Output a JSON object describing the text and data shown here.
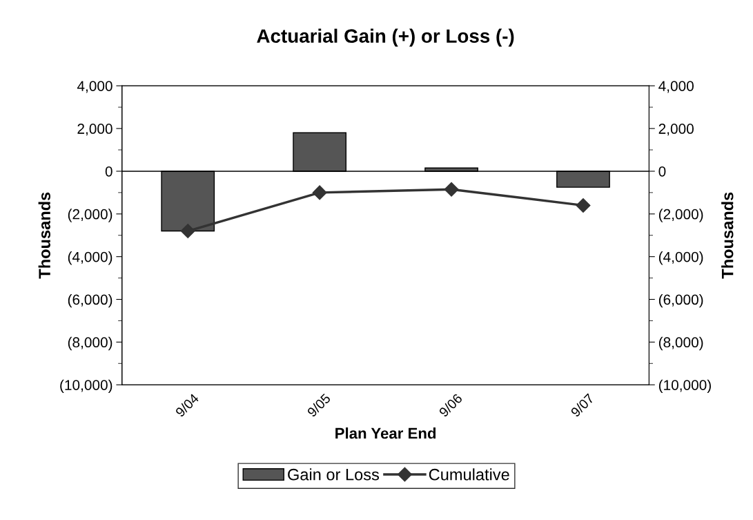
{
  "chart_data": {
    "type": "bar",
    "title": "Actuarial Gain (+) or Loss (-)",
    "xlabel": "Plan Year End",
    "ylabel": "Thousands",
    "y2label": "Thousands",
    "categories": [
      "9/04",
      "9/05",
      "9/06",
      "9/07"
    ],
    "series": [
      {
        "name": "Gain or Loss",
        "color": "#555555",
        "values": [
          -2800,
          1800,
          150,
          -750
        ]
      },
      {
        "name": "Cumulative",
        "type": "line",
        "color": "#333333",
        "marker": "diamond",
        "values": [
          -2800,
          -1000,
          -850,
          -1600
        ]
      }
    ],
    "ylim": [
      -10000,
      4000
    ],
    "yticks": [
      {
        "value": -10000,
        "label": "(10,000)"
      },
      {
        "value": -8000,
        "label": "(8,000)"
      },
      {
        "value": -6000,
        "label": "(6,000)"
      },
      {
        "value": -4000,
        "label": "(4,000)"
      },
      {
        "value": -2000,
        "label": "(2,000)"
      },
      0,
      {
        "value": 2000,
        "label": "2,000"
      },
      {
        "value": 4000,
        "label": "4,000"
      }
    ],
    "y2lim": [
      -10000,
      4000
    ],
    "y2ticks": [
      {
        "value": -10000,
        "label": "(10,000)"
      },
      {
        "value": -8000,
        "label": "(8,000)"
      },
      {
        "value": -6000,
        "label": "(6,000)"
      },
      {
        "value": -4000,
        "label": "(4,000)"
      },
      {
        "value": -2000,
        "label": "(2,000)"
      },
      0,
      {
        "value": 2000,
        "label": "2,000"
      },
      {
        "value": 4000,
        "label": "4,000"
      }
    ],
    "ref_lines": [
      {
        "axis": "y",
        "value": 0,
        "color": "#000000"
      }
    ],
    "grid": false,
    "legend": "bottom"
  }
}
